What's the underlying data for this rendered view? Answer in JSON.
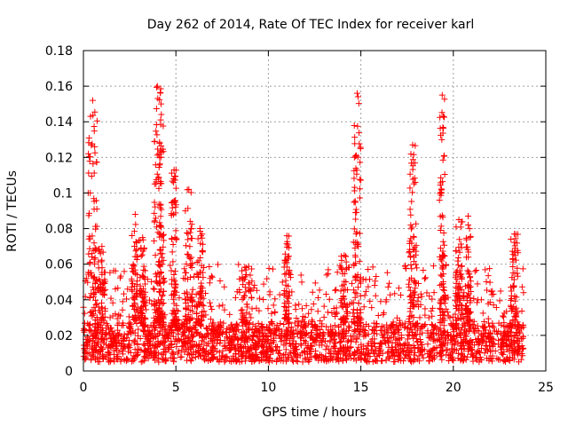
{
  "chart_data": {
    "type": "scatter",
    "title": "Day 262 of 2014, Rate Of TEC Index for receiver karl",
    "xlabel": "GPS time / hours",
    "ylabel": "ROTI / TECUs",
    "xlim": [
      0,
      25
    ],
    "ylim": [
      0,
      0.18
    ],
    "xticks": [
      0,
      5,
      10,
      15,
      20,
      25
    ],
    "yticks": [
      0,
      0.02,
      0.04,
      0.06,
      0.08,
      0.1,
      0.12,
      0.14,
      0.16,
      0.18
    ],
    "xtick_labels": [
      "0",
      "5",
      "10",
      "15",
      "20",
      "25"
    ],
    "ytick_labels": [
      "0",
      "0.02",
      "0.04",
      "0.06",
      "0.08",
      "0.1",
      "0.12",
      "0.14",
      "0.16",
      "0.18"
    ],
    "grid": true,
    "marker": "+",
    "color": "#ff0000",
    "series": [
      {
        "name": "ROTI",
        "x_range": [
          0,
          23.8
        ],
        "typical_range": [
          0.005,
          0.045
        ],
        "bursts": [
          {
            "x": 0.5,
            "width": 0.5,
            "max": 0.152
          },
          {
            "x": 1.0,
            "width": 0.4,
            "max": 0.07
          },
          {
            "x": 2.8,
            "width": 0.4,
            "max": 0.088
          },
          {
            "x": 3.2,
            "width": 0.3,
            "max": 0.075
          },
          {
            "x": 4.0,
            "width": 0.4,
            "max": 0.16
          },
          {
            "x": 4.2,
            "width": 0.3,
            "max": 0.15
          },
          {
            "x": 4.9,
            "width": 0.3,
            "max": 0.113
          },
          {
            "x": 5.7,
            "width": 0.4,
            "max": 0.102
          },
          {
            "x": 6.3,
            "width": 0.4,
            "max": 0.08
          },
          {
            "x": 8.8,
            "width": 0.6,
            "max": 0.058
          },
          {
            "x": 11.0,
            "width": 0.3,
            "max": 0.076
          },
          {
            "x": 14.1,
            "width": 0.4,
            "max": 0.065
          },
          {
            "x": 14.8,
            "width": 0.4,
            "max": 0.156
          },
          {
            "x": 17.8,
            "width": 0.4,
            "max": 0.127
          },
          {
            "x": 19.4,
            "width": 0.3,
            "max": 0.155
          },
          {
            "x": 20.3,
            "width": 0.4,
            "max": 0.085
          },
          {
            "x": 20.8,
            "width": 0.3,
            "max": 0.087
          },
          {
            "x": 23.3,
            "width": 0.4,
            "max": 0.077
          }
        ]
      }
    ]
  }
}
